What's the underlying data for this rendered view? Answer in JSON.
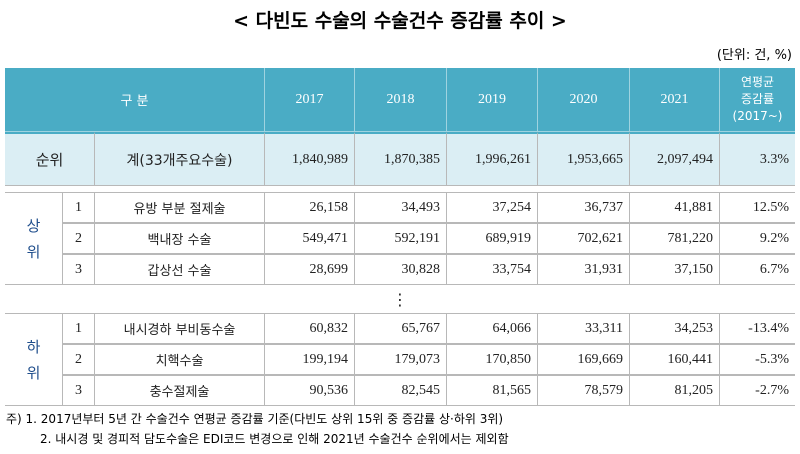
{
  "title": "< 다빈도 수술의 수술건수 증감률 추이 >",
  "unit": "(단위: 건, %)",
  "table": {
    "header": {
      "label": "구 분",
      "years": [
        "2017",
        "2018",
        "2019",
        "2020",
        "2021"
      ],
      "cagr": [
        "연평균",
        "증감률",
        "(2017~)"
      ]
    },
    "total": {
      "label": "순위",
      "name": "계(33개주요수술)",
      "values": [
        "1,840,989",
        "1,870,385",
        "1,996,261",
        "1,953,665",
        "2,097,494"
      ],
      "cagr": "3.3%"
    },
    "groups": [
      {
        "label": [
          "상",
          "위"
        ],
        "rows": [
          {
            "rank": "1",
            "name": "유방 부분 절제술",
            "values": [
              "26,158",
              "34,493",
              "37,254",
              "36,737",
              "41,881"
            ],
            "cagr": "12.5%"
          },
          {
            "rank": "2",
            "name": "백내장 수술",
            "values": [
              "549,471",
              "592,191",
              "689,919",
              "702,621",
              "781,220"
            ],
            "cagr": "9.2%"
          },
          {
            "rank": "3",
            "name": "갑상선 수술",
            "values": [
              "28,699",
              "30,828",
              "33,754",
              "31,931",
              "37,150"
            ],
            "cagr": "6.7%"
          }
        ]
      },
      {
        "label": [
          "하",
          "위"
        ],
        "rows": [
          {
            "rank": "1",
            "name": "내시경하 부비동수술",
            "values": [
              "60,832",
              "65,767",
              "64,066",
              "33,311",
              "34,253"
            ],
            "cagr": "-13.4%"
          },
          {
            "rank": "2",
            "name": "치핵수술",
            "values": [
              "199,194",
              "179,073",
              "170,850",
              "169,669",
              "160,441"
            ],
            "cagr": "-5.3%"
          },
          {
            "rank": "3",
            "name": "충수절제술",
            "values": [
              "90,536",
              "82,545",
              "81,565",
              "78,579",
              "81,205"
            ],
            "cagr": "-2.7%"
          }
        ]
      }
    ],
    "ellipsis": "⋮"
  },
  "notes": [
    "주) 1. 2017년부터 5년 간 수술건수 연평균 증감률 기준(다빈도 상위 15위 중 증감률 상·하위 3위)",
    "2. 내시경 및 경피적 담도수술은 EDI코드 변경으로 인해 2021년 수술건수 순위에서는 제외함"
  ]
}
